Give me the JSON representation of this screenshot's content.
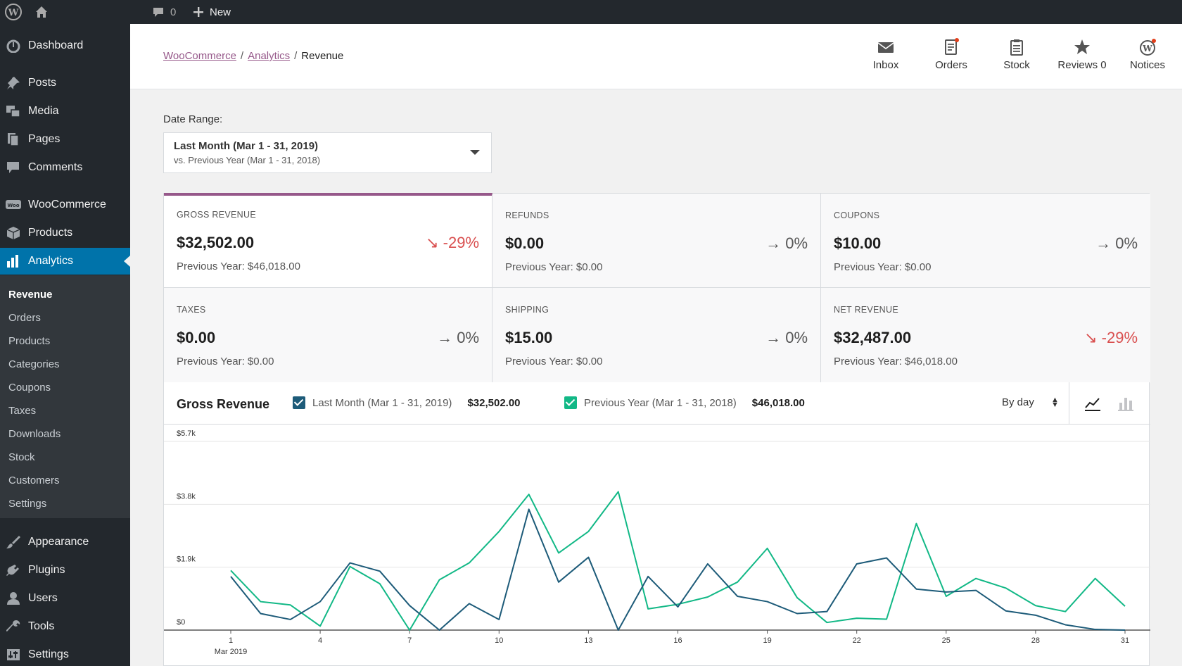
{
  "adminbar": {
    "comments_count": "0",
    "new_label": "New"
  },
  "sidebar": {
    "menu": [
      {
        "label": "Dashboard",
        "icon": "dashboard-icon"
      },
      {
        "label": "Posts",
        "icon": "pin-icon"
      },
      {
        "label": "Media",
        "icon": "media-icon"
      },
      {
        "label": "Pages",
        "icon": "pages-icon"
      },
      {
        "label": "Comments",
        "icon": "comment-icon"
      },
      {
        "label": "WooCommerce",
        "icon": "woocommerce-icon"
      },
      {
        "label": "Products",
        "icon": "box-icon"
      },
      {
        "label": "Analytics",
        "icon": "bar-chart-icon"
      },
      {
        "label": "Appearance",
        "icon": "brush-icon"
      },
      {
        "label": "Plugins",
        "icon": "plug-icon"
      },
      {
        "label": "Users",
        "icon": "user-icon"
      },
      {
        "label": "Tools",
        "icon": "wrench-icon"
      },
      {
        "label": "Settings",
        "icon": "settings-icon"
      }
    ],
    "submenu": [
      "Revenue",
      "Orders",
      "Products",
      "Categories",
      "Coupons",
      "Taxes",
      "Downloads",
      "Stock",
      "Customers",
      "Settings"
    ]
  },
  "header": {
    "breadcrumb": [
      "WooCommerce",
      "Analytics",
      "Revenue"
    ],
    "buttons": [
      {
        "label": "Inbox",
        "icon": "inbox-icon"
      },
      {
        "label": "Orders",
        "icon": "orders-icon"
      },
      {
        "label": "Stock",
        "icon": "stock-icon"
      },
      {
        "label": "Reviews 0",
        "icon": "star-icon"
      },
      {
        "label": "Notices",
        "icon": "wordpress-icon"
      }
    ]
  },
  "date_range": {
    "label": "Date Range:",
    "primary": "Last Month (Mar 1 - 31, 2019)",
    "secondary": "vs. Previous Year (Mar 1 - 31, 2018)"
  },
  "summary": [
    {
      "label": "GROSS REVENUE",
      "value": "$32,502.00",
      "delta": "-29%",
      "direction": "down",
      "prev": "Previous Year: $46,018.00"
    },
    {
      "label": "REFUNDS",
      "value": "$0.00",
      "delta": "0%",
      "direction": "flat",
      "prev": "Previous Year: $0.00"
    },
    {
      "label": "COUPONS",
      "value": "$10.00",
      "delta": "0%",
      "direction": "flat",
      "prev": "Previous Year: $0.00"
    },
    {
      "label": "TAXES",
      "value": "$0.00",
      "delta": "0%",
      "direction": "flat",
      "prev": "Previous Year: $0.00"
    },
    {
      "label": "SHIPPING",
      "value": "$15.00",
      "delta": "0%",
      "direction": "flat",
      "prev": "Previous Year: $0.00"
    },
    {
      "label": "NET REVENUE",
      "value": "$32,487.00",
      "delta": "-29%",
      "direction": "down",
      "prev": "Previous Year: $46,018.00"
    }
  ],
  "chart_header": {
    "title": "Gross Revenue",
    "legend": [
      {
        "label": "Last Month (Mar 1 - 31, 2019)",
        "total": "$32,502.00",
        "color": "#1d5b79"
      },
      {
        "label": "Previous Year (Mar 1 - 31, 2018)",
        "total": "$46,018.00",
        "color": "#12b886"
      }
    ],
    "interval": "By day"
  },
  "colors": {
    "accent": "#96588a",
    "admin_blue": "#0073aa",
    "negative": "#d94f4f"
  },
  "chart_data": {
    "type": "line",
    "x": [
      1,
      2,
      3,
      4,
      5,
      6,
      7,
      8,
      9,
      10,
      11,
      12,
      13,
      14,
      15,
      16,
      17,
      18,
      19,
      20,
      21,
      22,
      23,
      24,
      25,
      26,
      27,
      28,
      29,
      30,
      31
    ],
    "x_tick_labels": [
      "1",
      "4",
      "7",
      "10",
      "13",
      "16",
      "19",
      "22",
      "25",
      "28",
      "31"
    ],
    "x_tick_values": [
      1,
      4,
      7,
      10,
      13,
      16,
      19,
      22,
      25,
      28,
      31
    ],
    "x_sublabel": "Mar 2019",
    "y_tick_labels": [
      "$0",
      "$1.9k",
      "$3.8k",
      "$5.7k"
    ],
    "y_tick_values": [
      0,
      1900,
      3800,
      5700
    ],
    "ylim": [
      0,
      5700
    ],
    "series": [
      {
        "name": "Last Month (Mar 1 - 31, 2019)",
        "color": "#1d5b79",
        "values": [
          1620,
          500,
          320,
          860,
          2030,
          1780,
          740,
          0,
          800,
          320,
          3650,
          1450,
          2200,
          0,
          1620,
          700,
          2000,
          1020,
          860,
          500,
          560,
          2000,
          2180,
          1240,
          1150,
          1200,
          580,
          450,
          160,
          20,
          0
        ]
      },
      {
        "name": "Previous Year (Mar 1 - 31, 2018)",
        "color": "#12b886",
        "values": [
          1800,
          860,
          760,
          120,
          1920,
          1400,
          0,
          1520,
          2030,
          2980,
          4100,
          2330,
          2980,
          4180,
          640,
          780,
          1000,
          1450,
          2470,
          980,
          230,
          360,
          330,
          3220,
          1020,
          1560,
          1270,
          740,
          560,
          1560,
          720
        ]
      }
    ]
  }
}
